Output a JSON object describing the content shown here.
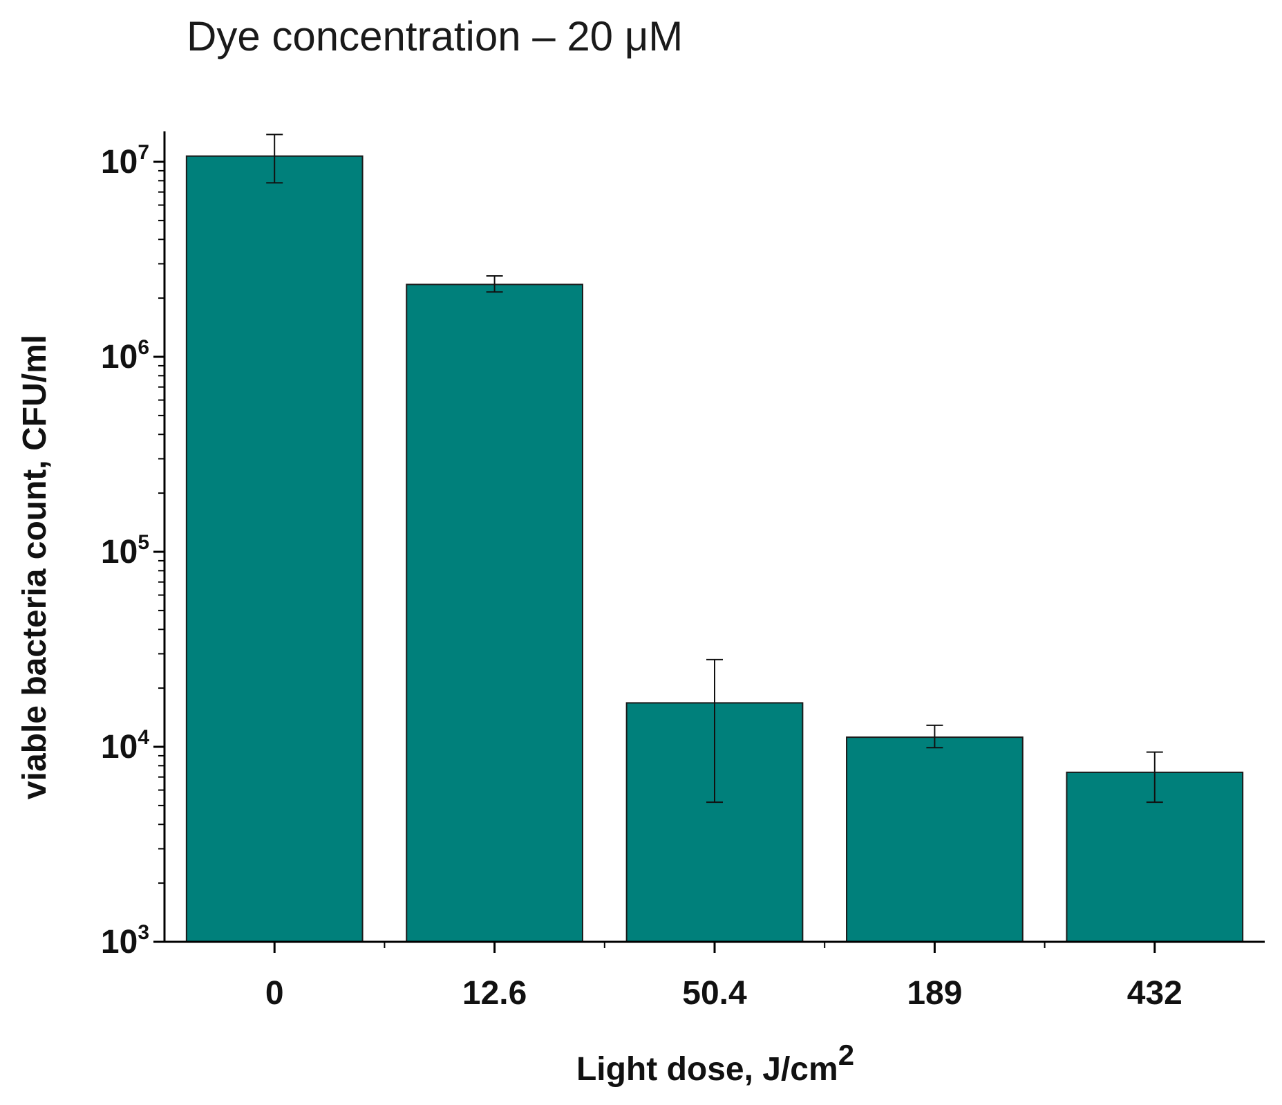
{
  "chart_data": {
    "type": "bar",
    "title": "Dye concentration – 20 μM",
    "xlabel": "Light dose, J/cm",
    "xlabel_superscript": "2",
    "ylabel": "viable bacteria count, CFU/ml",
    "yscale": "log",
    "ylim": [
      1000,
      15000000
    ],
    "yticks": [
      {
        "base": "10",
        "exp": "3",
        "value": 1000
      },
      {
        "base": "10",
        "exp": "4",
        "value": 10000
      },
      {
        "base": "10",
        "exp": "5",
        "value": 100000
      },
      {
        "base": "10",
        "exp": "6",
        "value": 1000000
      },
      {
        "base": "10",
        "exp": "7",
        "value": 10000000
      }
    ],
    "categories": [
      "0",
      "12.6",
      "50.4",
      "189",
      "432"
    ],
    "values": [
      10700000,
      2350000,
      16800,
      11200,
      7400
    ],
    "error_low": [
      7800000,
      2150000,
      5200,
      9900,
      5200
    ],
    "error_high": [
      13800000,
      2600000,
      28000,
      12900,
      9400
    ],
    "bar_color": "#00807b",
    "grid": false
  }
}
